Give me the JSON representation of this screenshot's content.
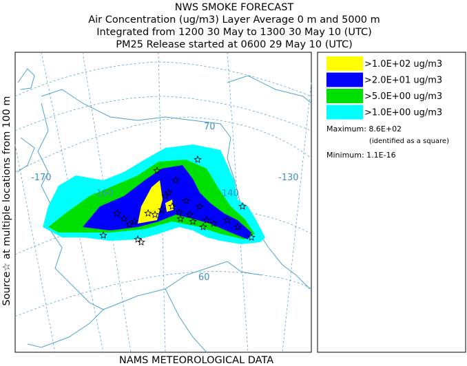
{
  "header": {
    "lines": [
      "NWS SMOKE FORECAST",
      "Air Concentration (ug/m3) Layer Average    0 m and  5000 m",
      "Integrated from 1200 30 May to 1300 30 May 10 (UTC)",
      "PM25 Release started at 0600 29 May 10 (UTC)"
    ]
  },
  "side_label": "Source☆  at multiple locations   from   100 m",
  "map": {
    "labels": [
      "-170",
      "-160",
      "-130",
      "140",
      "70",
      "60"
    ]
  },
  "legend": {
    "items": [
      {
        "label": ">1.0E+02 ug/m3",
        "color": "#ffff00"
      },
      {
        "label": ">2.0E+01 ug/m3",
        "color": "#0000ff"
      },
      {
        "label": ">5.0E+00 ug/m3",
        "color": "#00e000"
      },
      {
        "label": ">1.0E+00 ug/m3",
        "color": "#00ffff"
      }
    ],
    "maximum": "Maximum: 8.6E+02",
    "maximum_note": "(identified as a square)",
    "minimum": "Minimum: 1.1E-16"
  },
  "footer": "NAMS METEOROLOGICAL DATA"
}
